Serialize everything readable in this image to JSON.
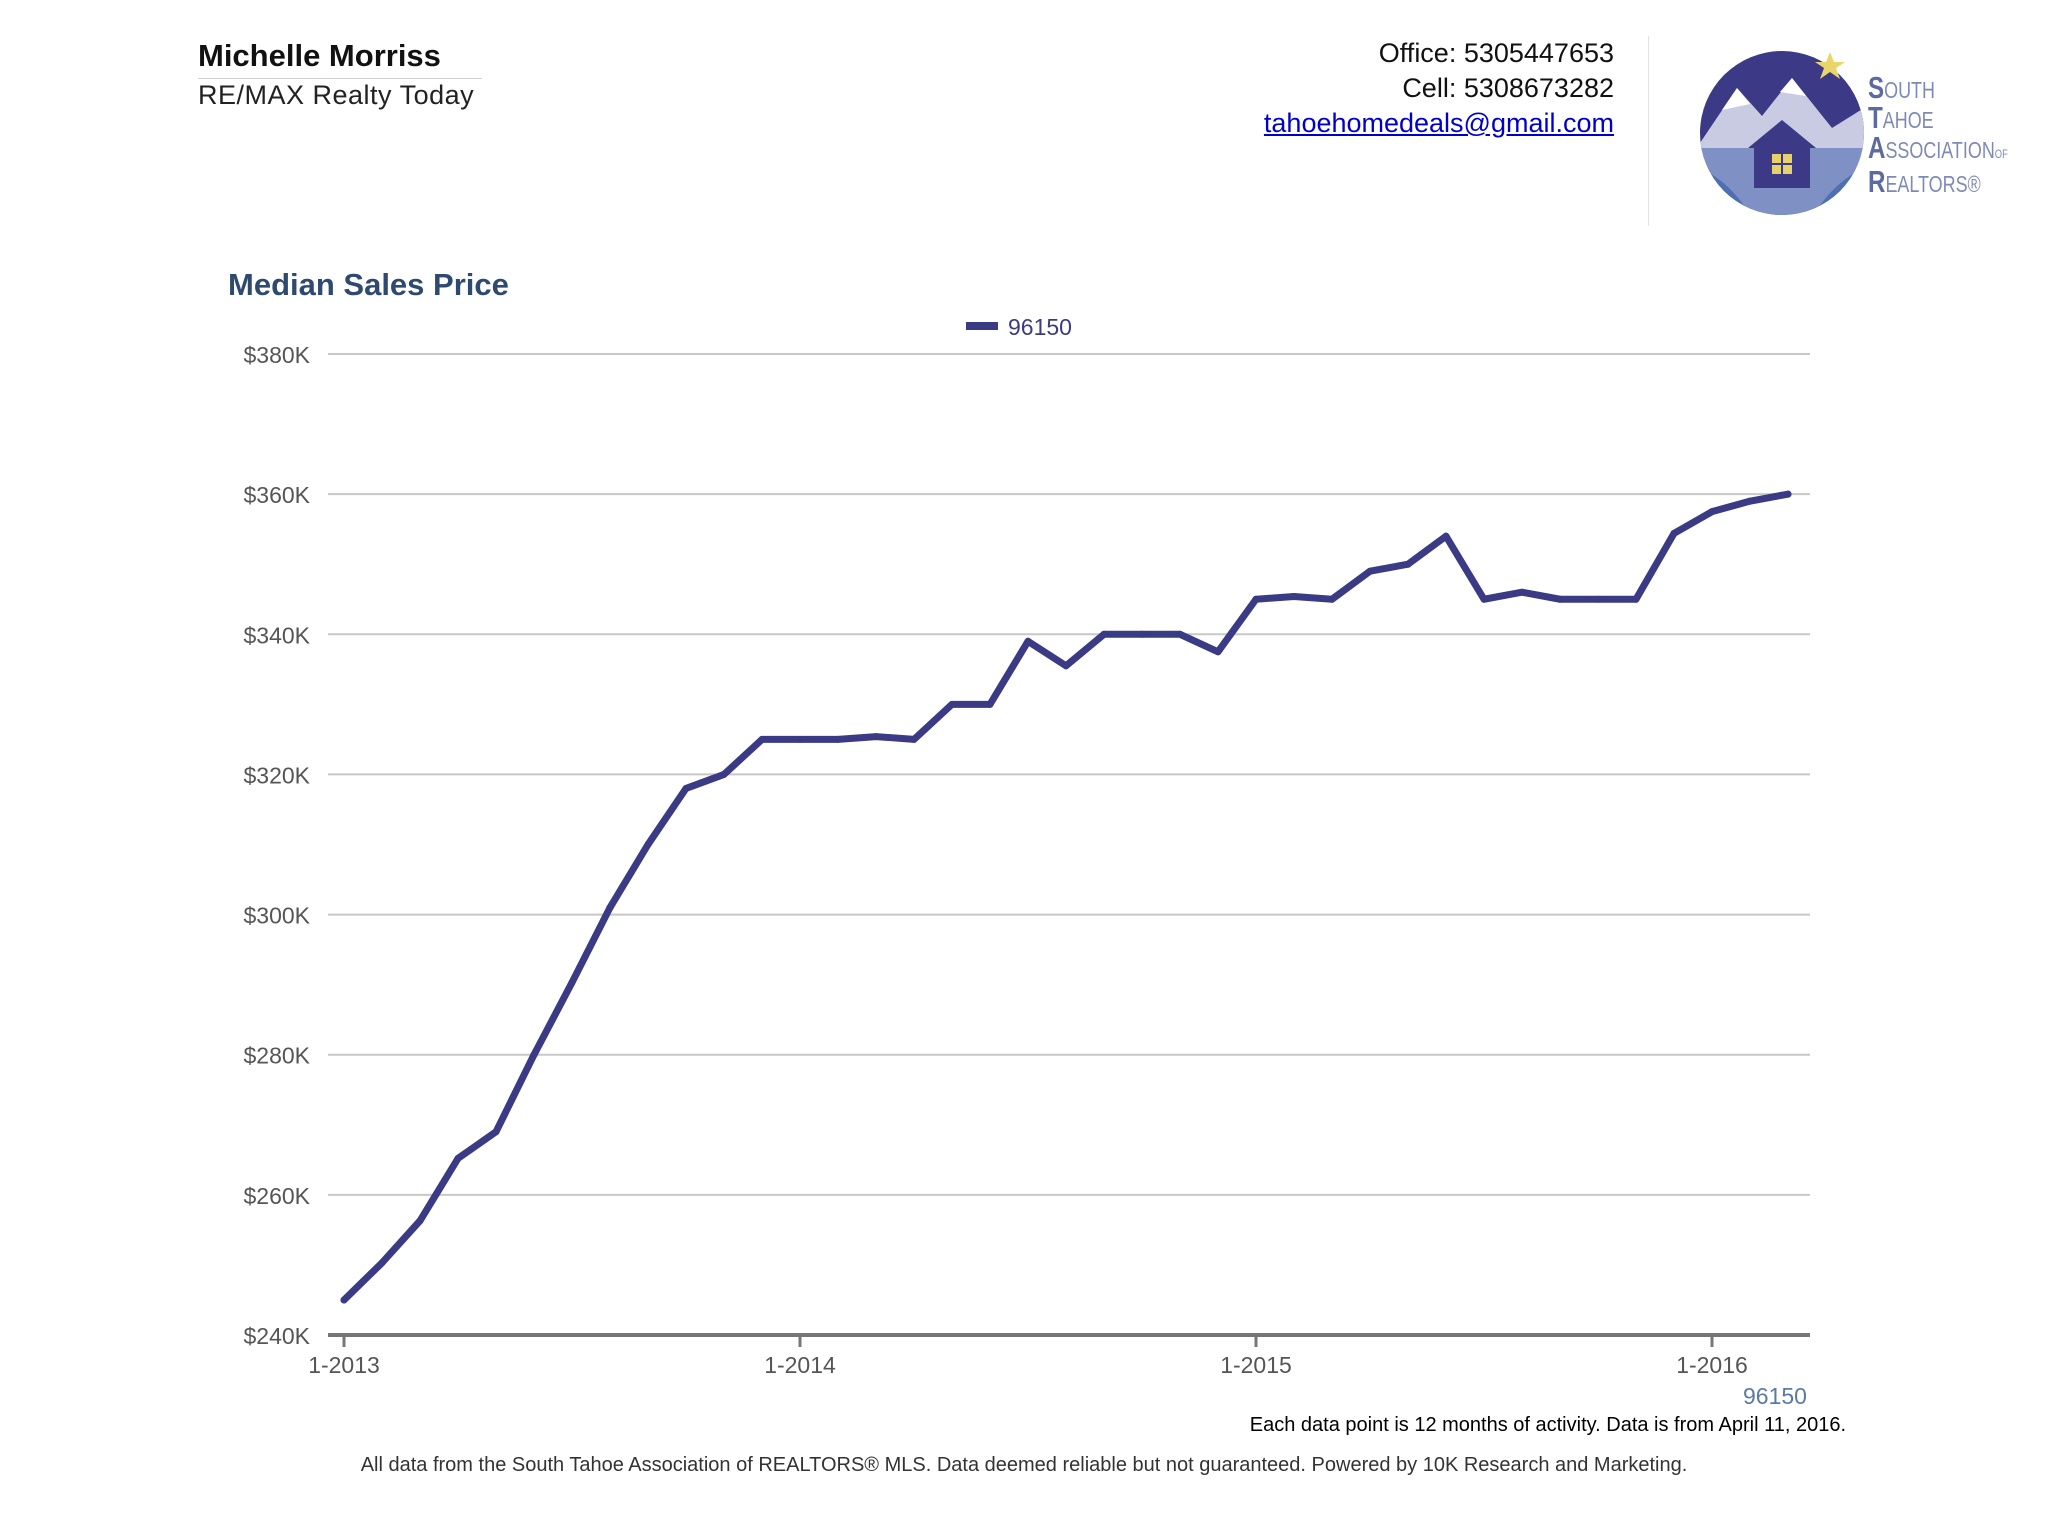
{
  "header": {
    "agent_name": "Michelle Morriss",
    "company": "RE/MAX Realty Today",
    "office": "Office: 5305447653",
    "cell": "Cell: 5308673282",
    "email": "tahoehomedeals@gmail.com"
  },
  "logo": {
    "line1": "OUTH",
    "line1_cap": "S",
    "line2": "AHOE",
    "line2_cap": "T",
    "line3": "SSOCIATION",
    "line3_cap": "A",
    "line3_suffix": "OF",
    "line4": "EALTORS®",
    "line4_cap": "R"
  },
  "colors": {
    "series": "#3b3a84",
    "title": "#2e4a6e",
    "grid": "#c8c8c8",
    "axis": "#777777"
  },
  "chart_data": {
    "type": "line",
    "title": "Median Sales Price",
    "xlabel": "",
    "ylabel": "",
    "ylim": [
      240000,
      380000
    ],
    "yticks": [
      "$240K",
      "$260K",
      "$280K",
      "$300K",
      "$320K",
      "$340K",
      "$360K",
      "$380K"
    ],
    "ytick_values": [
      240000,
      260000,
      280000,
      300000,
      320000,
      340000,
      360000,
      380000
    ],
    "xticks": [
      "1-2013",
      "1-2014",
      "1-2015",
      "1-2016"
    ],
    "x_axis_series_label": "96150",
    "legend": "top-center",
    "grid": true,
    "x": [
      "2013-01",
      "2013-02",
      "2013-03",
      "2013-04",
      "2013-05",
      "2013-06",
      "2013-07",
      "2013-08",
      "2013-09",
      "2013-10",
      "2013-11",
      "2013-12",
      "2014-01",
      "2014-02",
      "2014-03",
      "2014-04",
      "2014-05",
      "2014-06",
      "2014-07",
      "2014-08",
      "2014-09",
      "2014-10",
      "2014-11",
      "2014-12",
      "2015-01",
      "2015-02",
      "2015-03",
      "2015-04",
      "2015-05",
      "2015-06",
      "2015-07",
      "2015-08",
      "2015-09",
      "2015-10",
      "2015-11",
      "2015-12",
      "2016-01",
      "2016-02",
      "2016-03"
    ],
    "series": [
      {
        "name": "96150",
        "values": [
          245000,
          250300,
          256300,
          265200,
          269000,
          280000,
          290300,
          301000,
          310000,
          318000,
          320000,
          325000,
          325000,
          325000,
          325400,
          325000,
          330000,
          330000,
          339000,
          335500,
          340000,
          340000,
          340000,
          337500,
          345000,
          345400,
          345000,
          349000,
          350000,
          354000,
          345000,
          346000,
          345000,
          345000,
          345000,
          354400,
          357500,
          359000,
          360000
        ]
      }
    ]
  },
  "note": "Each data point is 12 months of activity. Data is from April 11, 2016.",
  "footer": "All data from the South Tahoe Association of REALTORS® MLS. Data deemed reliable but not guaranteed. Powered by 10K Research and Marketing."
}
